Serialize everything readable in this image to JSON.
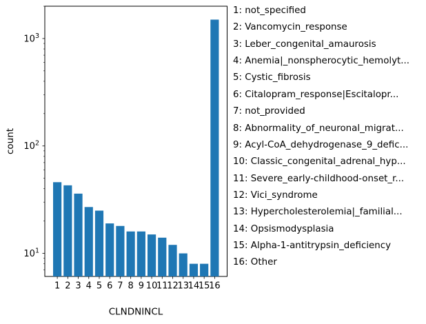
{
  "chart_data": {
    "type": "bar",
    "title": "",
    "xlabel": "CLNDNINCL",
    "ylabel": "count",
    "yscale": "log",
    "ylim": [
      6.1,
      2000
    ],
    "grid": false,
    "bar_color": "#1f77b4",
    "axis_color": "#000000",
    "background_color": "#ffffff",
    "categories": [
      "1",
      "2",
      "3",
      "4",
      "5",
      "6",
      "7",
      "8",
      "9",
      "10",
      "11",
      "12",
      "13",
      "14",
      "15",
      "16"
    ],
    "values": [
      46,
      43,
      36,
      27,
      25,
      19,
      18,
      16,
      16,
      15,
      14,
      12,
      10,
      8,
      8,
      1500
    ],
    "yticks": [
      {
        "value": 10,
        "base": "10",
        "exp": "1"
      },
      {
        "value": 100,
        "base": "10",
        "exp": "2"
      },
      {
        "value": 1000,
        "base": "10",
        "exp": "3"
      }
    ],
    "legend_position": "right-outside"
  },
  "legend": {
    "items": [
      "1: not_specified",
      "2: Vancomycin_response",
      "3: Leber_congenital_amaurosis",
      "4: Anemia|_nonspherocytic_hemolyt...",
      "5: Cystic_fibrosis",
      "6: Citalopram_response|Escitalopr...",
      "7: not_provided",
      "8: Abnormality_of_neuronal_migrat...",
      "9: Acyl-CoA_dehydrogenase_9_defic...",
      "10: Classic_congenital_adrenal_hyp...",
      "11: Severe_early-childhood-onset_r...",
      "12: Vici_syndrome",
      "13: Hypercholesterolemia|_familial...",
      "14: Opsismodysplasia",
      "15: Alpha-1-antitrypsin_deficiency",
      "16: Other"
    ]
  }
}
